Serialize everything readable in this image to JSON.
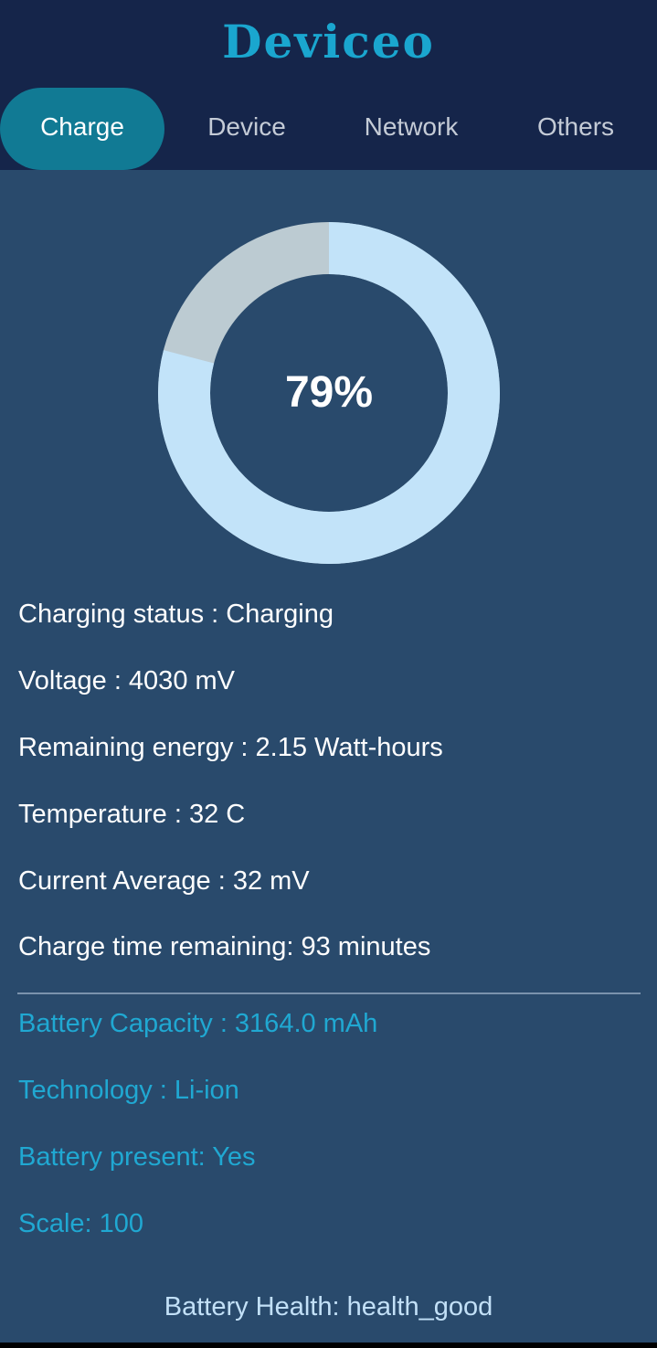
{
  "app": {
    "title": "Deviceo"
  },
  "tabs": [
    {
      "label": "Charge",
      "active": true
    },
    {
      "label": "Device",
      "active": false
    },
    {
      "label": "Network",
      "active": false
    },
    {
      "label": "Others",
      "active": false
    }
  ],
  "battery": {
    "level_percent": 79,
    "level_label": "79%",
    "fill_color": "#c2e3f9",
    "empty_color": "#bccbd2"
  },
  "status_rows": [
    "Charging status : Charging",
    "Voltage : 4030 mV",
    "Remaining energy : 2.15 Watt-hours",
    "Temperature : 32 C",
    "Current Average : 32 mV",
    "Charge time remaining: 93 minutes"
  ],
  "spec_rows": [
    "Battery Capacity : 3164.0 mAh",
    "Technology : Li-ion",
    "Battery present: Yes",
    "Scale: 100"
  ],
  "health": {
    "label": "Battery Health: health_good"
  },
  "colors": {
    "header_bg": "#15254a",
    "body_bg": "#294a6c",
    "accent": "#20a8d2",
    "active_tab": "#117a94"
  }
}
